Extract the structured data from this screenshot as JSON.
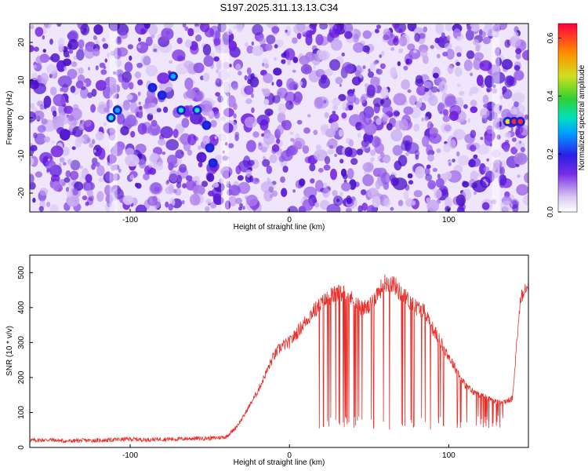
{
  "chart_data": [
    {
      "type": "heatmap",
      "title": "S197.2025.311.13.13.C34",
      "xlabel": "Height of straight line (km)",
      "ylabel": "Frequency (Hz)",
      "xlim": [
        -163,
        150
      ],
      "ylim": [
        -25,
        25
      ],
      "xticks": [
        -100,
        0,
        100
      ],
      "yticks": [
        -20,
        -10,
        0,
        10,
        20
      ],
      "colorbar": {
        "label": "Normalized spectral amplitude",
        "range": [
          0,
          0.65
        ],
        "ticks": [
          0.0,
          0.2,
          0.4,
          0.6
        ]
      },
      "hotspots": [
        {
          "x": -112,
          "y": 0,
          "amp": 0.3
        },
        {
          "x": -108,
          "y": 2,
          "amp": 0.25
        },
        {
          "x": -86,
          "y": 8,
          "amp": 0.2
        },
        {
          "x": -80,
          "y": 6,
          "amp": 0.18
        },
        {
          "x": -73,
          "y": 11,
          "amp": 0.22
        },
        {
          "x": -68,
          "y": 2,
          "amp": 0.3
        },
        {
          "x": -58,
          "y": 2,
          "amp": 0.35
        },
        {
          "x": -52,
          "y": -2,
          "amp": 0.18
        },
        {
          "x": -50,
          "y": -8,
          "amp": 0.2
        },
        {
          "x": -48,
          "y": -12,
          "amp": 0.18
        },
        {
          "x": 137,
          "y": -1,
          "amp": 0.45
        },
        {
          "x": 141,
          "y": -1,
          "amp": 0.6
        },
        {
          "x": 145,
          "y": -1,
          "amp": 0.55
        }
      ]
    },
    {
      "type": "line",
      "xlabel": "Height of straight line (km)",
      "ylabel": "SNR (10 * v/v)",
      "xlim": [
        -163,
        150
      ],
      "ylim": [
        0,
        550
      ],
      "xticks": [
        -100,
        0,
        100
      ],
      "yticks": [
        0,
        100,
        200,
        300,
        400,
        500
      ],
      "series": [
        {
          "name": "SNR",
          "color": "#e8302a",
          "x": [
            -163,
            -150,
            -140,
            -130,
            -120,
            -110,
            -100,
            -90,
            -80,
            -70,
            -60,
            -50,
            -40,
            -35,
            -30,
            -25,
            -20,
            -15,
            -10,
            -5,
            0,
            5,
            10,
            15,
            20,
            25,
            30,
            35,
            40,
            45,
            50,
            55,
            60,
            65,
            70,
            75,
            80,
            85,
            90,
            95,
            100,
            105,
            110,
            115,
            120,
            125,
            130,
            135,
            140,
            145,
            150
          ],
          "y": [
            20,
            22,
            18,
            20,
            20,
            22,
            24,
            22,
            24,
            24,
            26,
            26,
            30,
            50,
            80,
            120,
            160,
            210,
            260,
            290,
            300,
            330,
            360,
            390,
            410,
            430,
            440,
            440,
            420,
            400,
            400,
            440,
            470,
            470,
            440,
            420,
            400,
            390,
            340,
            300,
            260,
            220,
            180,
            160,
            150,
            140,
            130,
            130,
            140,
            430,
            480
          ]
        }
      ]
    }
  ]
}
